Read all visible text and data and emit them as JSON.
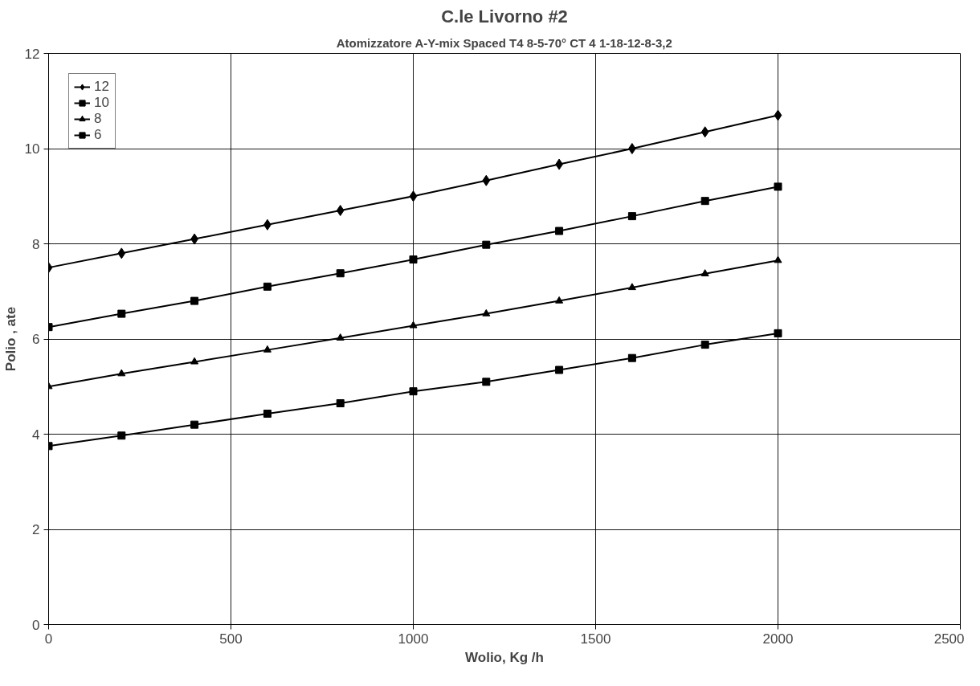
{
  "chart_data": {
    "type": "line",
    "title": "C.le Livorno #2",
    "subtitle": "Atomizzatore A-Y-mix Spaced T4 8-5-70° CT 4 1-18-12-8-3,2",
    "xlabel": "Wolio, Kg /h",
    "ylabel": "Polio , ate",
    "x": [
      0,
      200,
      400,
      600,
      800,
      1000,
      1200,
      1400,
      1600,
      1800,
      2000
    ],
    "series": [
      {
        "name": "12",
        "color": "#000000",
        "marker": "diamond",
        "values": [
          7.5,
          7.8,
          8.1,
          8.4,
          8.7,
          9.0,
          9.33,
          9.67,
          10.0,
          10.35,
          10.7
        ]
      },
      {
        "name": "10",
        "color": "#000000",
        "marker": "square",
        "values": [
          6.25,
          6.53,
          6.8,
          7.1,
          7.38,
          7.67,
          7.98,
          8.27,
          8.58,
          8.9,
          9.2
        ]
      },
      {
        "name": "8",
        "color": "#000000",
        "marker": "triangle",
        "values": [
          5.0,
          5.27,
          5.52,
          5.77,
          6.02,
          6.28,
          6.53,
          6.8,
          7.08,
          7.37,
          7.65
        ]
      },
      {
        "name": "6",
        "color": "#000000",
        "marker": "square",
        "values": [
          3.75,
          3.97,
          4.2,
          4.43,
          4.65,
          4.9,
          5.1,
          5.35,
          5.6,
          5.88,
          6.12
        ]
      }
    ],
    "xlim": [
      0,
      2500
    ],
    "xticks": [
      0,
      500,
      1000,
      1500,
      2000,
      2500
    ],
    "ylim": [
      0,
      12
    ],
    "yticks": [
      0,
      2,
      4,
      6,
      8,
      10,
      12
    ],
    "grid": true,
    "legend": "top left",
    "line_style": "solid"
  }
}
